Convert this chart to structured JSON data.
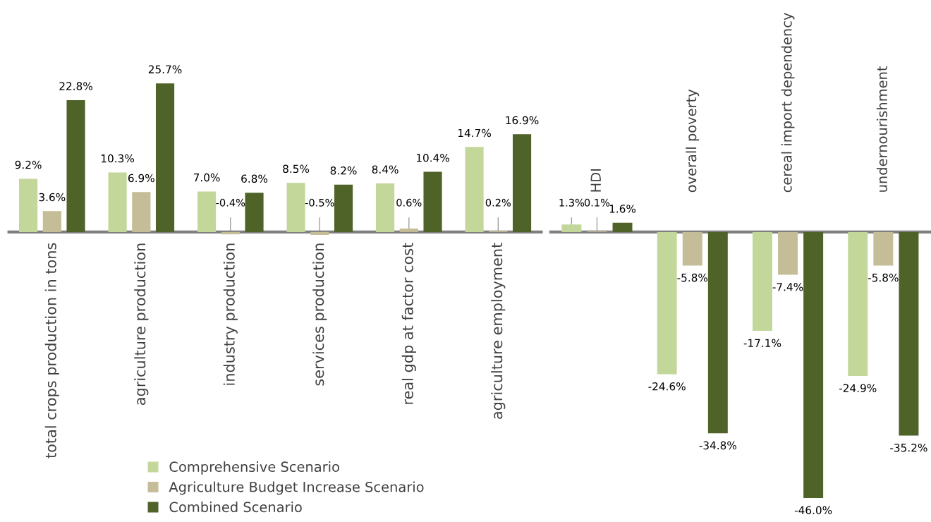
{
  "chart_data": [
    {
      "type": "bar",
      "categories": [
        "total crops production in tons",
        "agriculture production",
        "industry production",
        "services production",
        "real gdp at factor cost",
        "agriculture employment"
      ],
      "series": [
        {
          "name": "Comprehensive Scenario",
          "color": "#c4d79b",
          "values": [
            9.2,
            10.3,
            7.0,
            8.5,
            8.4,
            14.7
          ],
          "value_labels": [
            "9.2%",
            "10.3%",
            "7.0%",
            "8.5%",
            "8.4%",
            "14.7%"
          ]
        },
        {
          "name": "Agriculture Budget Increase Scenario",
          "color": "#c4bd97",
          "values": [
            3.6,
            6.9,
            -0.4,
            -0.5,
            0.6,
            0.2
          ],
          "value_labels": [
            "3.6%",
            "6.9%",
            "-0.4%",
            "-0.5%",
            "0.6%",
            "0.2%"
          ]
        },
        {
          "name": "Combined Scenario",
          "color": "#4f6228",
          "values": [
            22.8,
            25.7,
            6.8,
            8.2,
            10.4,
            16.9
          ],
          "value_labels": [
            "22.8%",
            "25.7%",
            "6.8%",
            "8.2%",
            "10.4%",
            "16.9%"
          ]
        }
      ],
      "tick_labels": "x",
      "legend": "bottom left"
    },
    {
      "type": "bar",
      "categories": [
        "HDI",
        "overall poverty",
        "cereal import dependency",
        "undernourishment"
      ],
      "series": [
        {
          "color": "#c4d79b",
          "values": [
            1.3,
            -24.6,
            -17.1,
            -24.9
          ],
          "value_labels": [
            "1.3%",
            "-24.6%",
            "-17.1%",
            "-24.9%"
          ]
        },
        {
          "color": "#c4bd97",
          "values": [
            0.1,
            -5.8,
            -7.4,
            -5.8
          ],
          "value_labels": [
            "0.1%",
            "-5.8%",
            "-7.4%",
            "-5.8%"
          ]
        },
        {
          "color": "#4f6228",
          "values": [
            1.6,
            -34.8,
            -46.0,
            -35.2
          ],
          "value_labels": [
            "1.6%",
            "-34.8%",
            "-46.0%",
            "-35.2%"
          ]
        }
      ],
      "tick_labels": "x"
    }
  ]
}
